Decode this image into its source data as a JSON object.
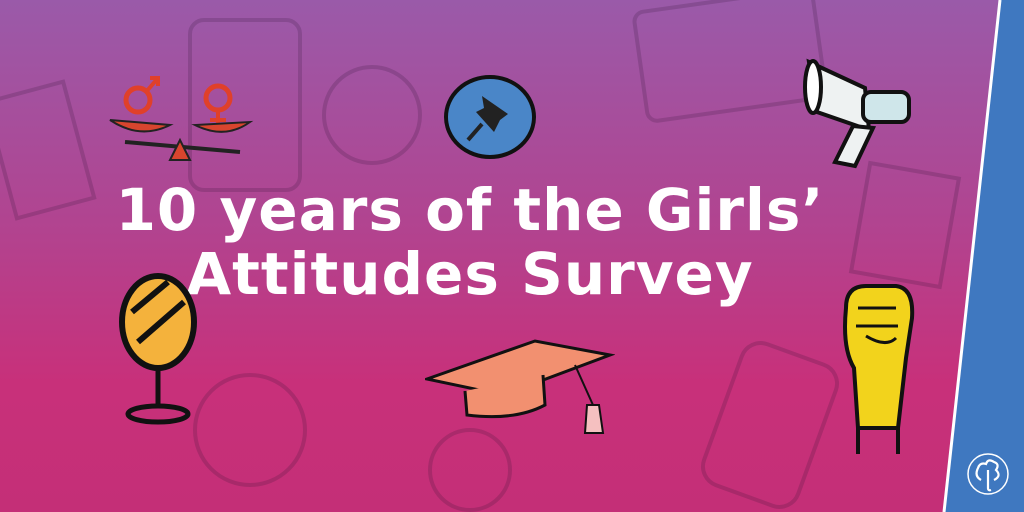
{
  "headline": {
    "line1": "10 years of the Girls’",
    "line2": "Attitudes Survey"
  },
  "colors": {
    "background_top": "#9a5aa9",
    "background_bottom": "#c8307a",
    "brand_stripe": "#3f78c0",
    "pin_circle": "#4a86c8",
    "mirror": "#f4b23c",
    "fist": "#f2d31c",
    "cap": "#f29070"
  },
  "icons": [
    "gender-scale-icon",
    "push-pin-icon",
    "megaphone-icon",
    "mirror-icon",
    "graduation-cap-icon",
    "raised-fist-icon",
    "trefoil-logo-icon"
  ]
}
